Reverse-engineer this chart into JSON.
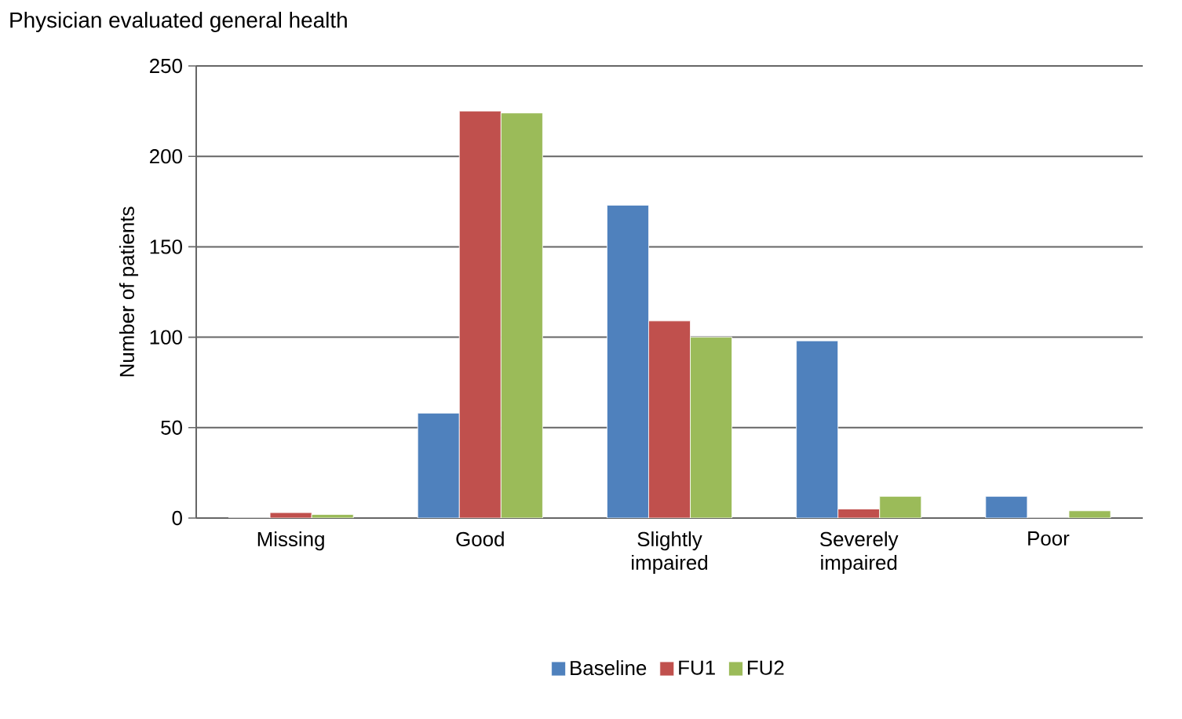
{
  "chart_data": {
    "type": "bar",
    "title": "Physician evaluated general health",
    "ylabel": "Number of patients",
    "categories": [
      "Missing",
      "Good",
      "Slightly impaired",
      "Severely impaired",
      "Poor"
    ],
    "series": [
      {
        "name": "Baseline",
        "color": "#4f81bd",
        "values": [
          0,
          58,
          173,
          98,
          12
        ]
      },
      {
        "name": "FU1",
        "color": "#c0504d",
        "values": [
          3,
          225,
          109,
          5,
          0
        ]
      },
      {
        "name": "FU2",
        "color": "#9bbb59",
        "values": [
          2,
          224,
          100,
          12,
          4
        ]
      }
    ],
    "ylim": [
      0,
      250
    ],
    "yticks": [
      0,
      50,
      100,
      150,
      200,
      250
    ],
    "grid": "y",
    "legend": "bottom"
  }
}
